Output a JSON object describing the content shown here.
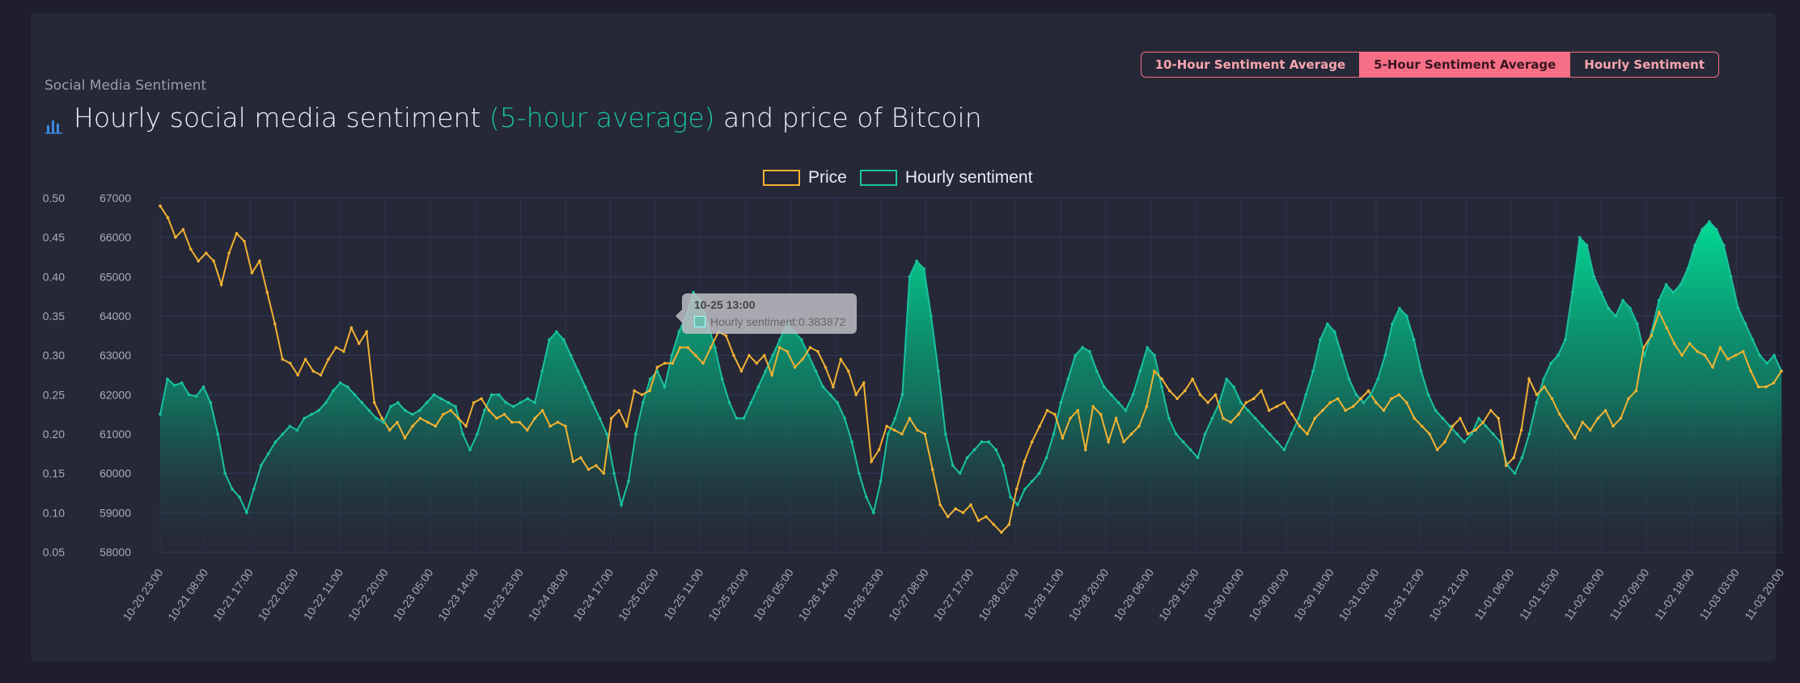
{
  "header": {
    "subtitle": "Social Media Sentiment",
    "title_prefix": "Hourly social media sentiment ",
    "title_highlight": "(5-hour average)",
    "title_suffix": " and price of Bitcoin",
    "title_icon": "bar-chart-icon"
  },
  "toggles": [
    {
      "label": "10-Hour Sentiment Average",
      "active": false
    },
    {
      "label": "5-Hour Sentiment Average",
      "active": true
    },
    {
      "label": "Hourly Sentiment",
      "active": false
    }
  ],
  "legend": {
    "price_label": "Price",
    "sentiment_label": "Hourly sentiment"
  },
  "tooltip": {
    "title": "10-25 13:00",
    "label": "Hourly sentiment",
    "value": "0.383872"
  },
  "colors": {
    "price": "#f2b233",
    "sentiment_line": "#19c3a0",
    "sentiment_fill_top": "#00e49a",
    "accent_button": "#f76f86"
  },
  "chart_data": {
    "type": "line",
    "x_ticks": [
      "10-20 23:00",
      "10-21 08:00",
      "10-21 17:00",
      "10-22 02:00",
      "10-22 11:00",
      "10-22 20:00",
      "10-23 05:00",
      "10-23 14:00",
      "10-23 23:00",
      "10-24 08:00",
      "10-24 17:00",
      "10-25 02:00",
      "10-25 11:00",
      "10-25 20:00",
      "10-26 05:00",
      "10-26 14:00",
      "10-26 23:00",
      "10-27 08:00",
      "10-27 17:00",
      "10-28 02:00",
      "10-28 11:00",
      "10-28 20:00",
      "10-29 06:00",
      "10-29 15:00",
      "10-30 00:00",
      "10-30 09:00",
      "10-30 18:00",
      "10-31 03:00",
      "10-31 12:00",
      "10-31 21:00",
      "11-01 06:00",
      "11-01 15:00",
      "11-02 00:00",
      "11-02 09:00",
      "11-02 18:00",
      "11-03 03:00",
      "11-03 20:00"
    ],
    "y_left_ticks": [
      "0.50",
      "0.45",
      "0.40",
      "0.35",
      "0.30",
      "0.25",
      "0.20",
      "0.15",
      "0.10",
      "0.05"
    ],
    "y_right_ticks": [
      "67000",
      "66000",
      "65000",
      "64000",
      "63000",
      "62000",
      "61000",
      "60000",
      "59000",
      "58000"
    ],
    "y_left_range": [
      0.05,
      0.5
    ],
    "y_right_range": [
      58000,
      67000
    ],
    "grid": true,
    "legend_position": "top-center",
    "series": [
      {
        "name": "Hourly sentiment",
        "axis": "left",
        "fill": true,
        "values": [
          0.225,
          0.27,
          0.262,
          0.265,
          0.25,
          0.248,
          0.26,
          0.24,
          0.2,
          0.15,
          0.13,
          0.12,
          0.1,
          0.13,
          0.16,
          0.175,
          0.19,
          0.2,
          0.21,
          0.205,
          0.22,
          0.225,
          0.23,
          0.24,
          0.255,
          0.265,
          0.26,
          0.25,
          0.24,
          0.23,
          0.22,
          0.215,
          0.235,
          0.24,
          0.23,
          0.225,
          0.23,
          0.24,
          0.25,
          0.245,
          0.24,
          0.235,
          0.2,
          0.18,
          0.2,
          0.23,
          0.25,
          0.25,
          0.24,
          0.235,
          0.24,
          0.245,
          0.24,
          0.28,
          0.32,
          0.33,
          0.32,
          0.3,
          0.28,
          0.26,
          0.24,
          0.22,
          0.2,
          0.15,
          0.11,
          0.14,
          0.2,
          0.24,
          0.27,
          0.28,
          0.26,
          0.3,
          0.33,
          0.35,
          0.38,
          0.37,
          0.34,
          0.31,
          0.27,
          0.24,
          0.22,
          0.22,
          0.24,
          0.26,
          0.28,
          0.3,
          0.32,
          0.34,
          0.33,
          0.32,
          0.3,
          0.28,
          0.26,
          0.25,
          0.24,
          0.22,
          0.19,
          0.15,
          0.12,
          0.1,
          0.14,
          0.2,
          0.22,
          0.25,
          0.4,
          0.42,
          0.41,
          0.35,
          0.28,
          0.2,
          0.16,
          0.15,
          0.17,
          0.18,
          0.19,
          0.19,
          0.18,
          0.16,
          0.12,
          0.11,
          0.13,
          0.14,
          0.15,
          0.17,
          0.2,
          0.24,
          0.27,
          0.3,
          0.31,
          0.305,
          0.28,
          0.26,
          0.25,
          0.24,
          0.23,
          0.25,
          0.28,
          0.31,
          0.3,
          0.26,
          0.22,
          0.2,
          0.19,
          0.18,
          0.17,
          0.2,
          0.22,
          0.24,
          0.27,
          0.26,
          0.24,
          0.23,
          0.22,
          0.21,
          0.2,
          0.19,
          0.18,
          0.2,
          0.22,
          0.25,
          0.28,
          0.32,
          0.34,
          0.33,
          0.3,
          0.27,
          0.25,
          0.24,
          0.25,
          0.27,
          0.3,
          0.34,
          0.36,
          0.35,
          0.32,
          0.28,
          0.25,
          0.23,
          0.22,
          0.21,
          0.2,
          0.19,
          0.2,
          0.22,
          0.21,
          0.2,
          0.19,
          0.16,
          0.15,
          0.17,
          0.2,
          0.24,
          0.27,
          0.29,
          0.3,
          0.32,
          0.38,
          0.45,
          0.44,
          0.4,
          0.38,
          0.36,
          0.35,
          0.37,
          0.36,
          0.34,
          0.3,
          0.33,
          0.37,
          0.39,
          0.38,
          0.39,
          0.41,
          0.44,
          0.46,
          0.47,
          0.46,
          0.44,
          0.4,
          0.36,
          0.34,
          0.32,
          0.3,
          0.29,
          0.3,
          0.28
        ]
      },
      {
        "name": "Price",
        "axis": "right",
        "fill": false,
        "values": [
          66800,
          66500,
          66000,
          66200,
          65700,
          65400,
          65600,
          65400,
          64800,
          65600,
          66100,
          65900,
          65100,
          65400,
          64600,
          63800,
          62900,
          62800,
          62500,
          62900,
          62600,
          62500,
          62900,
          63200,
          63100,
          63700,
          63300,
          63600,
          61800,
          61400,
          61100,
          61300,
          60900,
          61200,
          61400,
          61300,
          61200,
          61500,
          61600,
          61400,
          61200,
          61800,
          61900,
          61600,
          61400,
          61500,
          61300,
          61300,
          61100,
          61400,
          61600,
          61200,
          61300,
          61200,
          60300,
          60400,
          60100,
          60200,
          60000,
          61400,
          61600,
          61200,
          62100,
          62000,
          62100,
          62700,
          62800,
          62800,
          63200,
          63200,
          63000,
          62800,
          63200,
          63600,
          63500,
          63000,
          62600,
          63000,
          62800,
          63000,
          62500,
          63200,
          63100,
          62700,
          62900,
          63200,
          63100,
          62700,
          62200,
          62900,
          62600,
          62000,
          62300,
          60300,
          60600,
          61200,
          61100,
          61000,
          61400,
          61100,
          61000,
          60100,
          59200,
          58900,
          59100,
          59000,
          59200,
          58800,
          58900,
          58700,
          58500,
          58700,
          59600,
          60300,
          60800,
          61200,
          61600,
          61500,
          60900,
          61400,
          61600,
          60600,
          61700,
          61500,
          60800,
          61400,
          60800,
          61000,
          61200,
          61700,
          62600,
          62400,
          62100,
          61900,
          62100,
          62400,
          62000,
          61800,
          62000,
          61400,
          61300,
          61500,
          61800,
          61900,
          62100,
          61600,
          61700,
          61800,
          61500,
          61200,
          61000,
          61400,
          61600,
          61800,
          61900,
          61600,
          61700,
          61900,
          62100,
          61800,
          61600,
          61900,
          62000,
          61800,
          61400,
          61200,
          61000,
          60600,
          60800,
          61200,
          61400,
          61000,
          61100,
          61300,
          61600,
          61400,
          60200,
          60400,
          61100,
          62400,
          62000,
          62200,
          61900,
          61500,
          61200,
          60900,
          61300,
          61100,
          61400,
          61600,
          61200,
          61400,
          61900,
          62100,
          63200,
          63500,
          64100,
          63700,
          63300,
          63000,
          63300,
          63100,
          63000,
          62700,
          63200,
          62900,
          63000,
          63100,
          62600,
          62200,
          62200,
          62300,
          62600
        ]
      }
    ]
  }
}
